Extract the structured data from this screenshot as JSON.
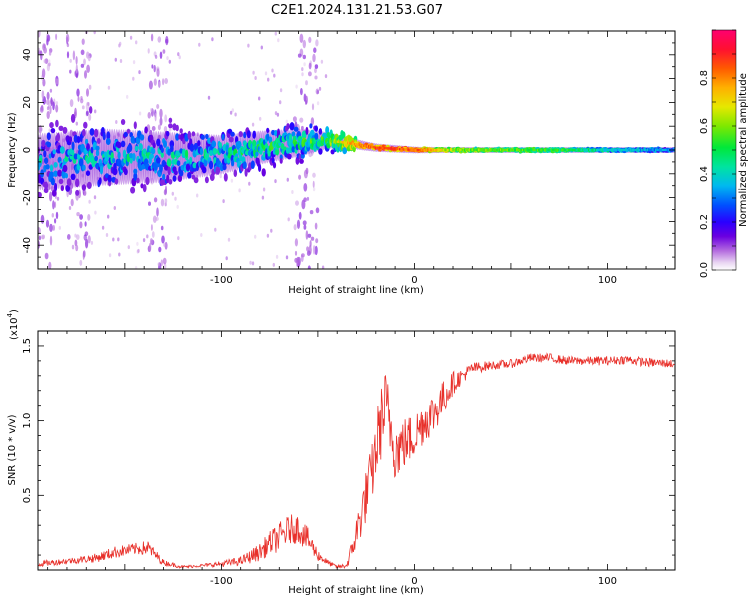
{
  "figure_title": "C2E1.2024.131.21.53.G07",
  "colors": {
    "snr_line": "#e8302a",
    "axes": "#000000",
    "background": "#ffffff"
  },
  "chart_data": [
    {
      "type": "heatmap",
      "title": "C2E1.2024.131.21.53.G07",
      "xlabel": "Height of straight line (km)",
      "ylabel": "Frequency (Hz)",
      "xlim": [
        -195,
        135
      ],
      "ylim": [
        -50,
        50
      ],
      "xticks": [
        {
          "value": -100,
          "label": "-100"
        },
        {
          "value": 0,
          "label": "0"
        },
        {
          "value": 100,
          "label": "100"
        }
      ],
      "yticks": [
        {
          "value": -40,
          "label": "-40"
        },
        {
          "value": -20,
          "label": "-20"
        },
        {
          "value": 0,
          "label": "0"
        },
        {
          "value": 20,
          "label": "20"
        },
        {
          "value": 40,
          "label": "40"
        }
      ],
      "colorbar": {
        "label": "Normalized spectral amplitude",
        "range": [
          0.0,
          1.0
        ],
        "ticks": [
          {
            "value": 0.0,
            "label": "0.0"
          },
          {
            "value": 0.2,
            "label": "0.2"
          },
          {
            "value": 0.4,
            "label": "0.4"
          },
          {
            "value": 0.6,
            "label": "0.6"
          },
          {
            "value": 0.8,
            "label": "0.8"
          }
        ]
      },
      "ridge": {
        "x": [
          -195,
          -160,
          -130,
          -100,
          -80,
          -60,
          -45,
          -35,
          -20,
          0,
          20,
          50,
          80,
          100,
          135
        ],
        "freq_hz": [
          -5,
          -3,
          -3,
          -2,
          1,
          3,
          4,
          3,
          1,
          0,
          0,
          0,
          0,
          0,
          0
        ],
        "spread_hz": [
          10,
          10,
          9,
          7,
          6,
          5,
          3,
          2,
          1.5,
          1.2,
          1.0,
          1.0,
          1.0,
          1.0,
          1.0
        ],
        "amplitude": [
          0.35,
          0.38,
          0.4,
          0.42,
          0.45,
          0.45,
          0.55,
          0.75,
          0.85,
          0.85,
          0.6,
          0.55,
          0.5,
          0.4,
          0.3
        ]
      },
      "noise_bands_x": [
        [
          -195,
          -185
        ],
        [
          -180,
          -168
        ],
        [
          -138,
          -128
        ],
        [
          -62,
          -50
        ]
      ]
    },
    {
      "type": "line",
      "xlabel": "Height of straight line (km)",
      "ylabel": "SNR (10 * v/v)",
      "y_scale_label": "(x10",
      "y_scale_exponent": "4",
      "xlim": [
        -195,
        135
      ],
      "ylim": [
        0,
        1.6
      ],
      "xticks": [
        {
          "value": -100,
          "label": "-100"
        },
        {
          "value": 0,
          "label": "0"
        },
        {
          "value": 100,
          "label": "100"
        }
      ],
      "yticks": [
        {
          "value": 0.5,
          "label": "0.5"
        },
        {
          "value": 1.0,
          "label": "1.0"
        },
        {
          "value": 1.5,
          "label": "1.5"
        }
      ],
      "series": [
        {
          "name": "SNR",
          "x": [
            -195,
            -180,
            -165,
            -155,
            -145,
            -138,
            -130,
            -120,
            -110,
            -100,
            -90,
            -80,
            -75,
            -70,
            -65,
            -60,
            -55,
            -50,
            -45,
            -40,
            -35,
            -32,
            -28,
            -25,
            -22,
            -20,
            -18,
            -15,
            -12,
            -10,
            -5,
            0,
            5,
            10,
            15,
            20,
            25,
            30,
            40,
            50,
            60,
            70,
            80,
            90,
            100,
            110,
            120,
            135
          ],
          "y": [
            0.04,
            0.06,
            0.08,
            0.12,
            0.14,
            0.15,
            0.05,
            0.02,
            0.03,
            0.04,
            0.06,
            0.12,
            0.18,
            0.22,
            0.27,
            0.28,
            0.2,
            0.1,
            0.05,
            0.02,
            0.03,
            0.15,
            0.35,
            0.5,
            0.65,
            0.8,
            0.95,
            1.1,
            0.95,
            0.8,
            0.85,
            0.9,
            1.0,
            1.05,
            1.15,
            1.25,
            1.3,
            1.35,
            1.37,
            1.38,
            1.42,
            1.42,
            1.4,
            1.4,
            1.4,
            1.41,
            1.39,
            1.38
          ],
          "noise_amplitude": [
            0.02,
            0.02,
            0.03,
            0.04,
            0.04,
            0.05,
            0.02,
            0.01,
            0.01,
            0.02,
            0.03,
            0.06,
            0.08,
            0.1,
            0.1,
            0.1,
            0.08,
            0.04,
            0.02,
            0.01,
            0.02,
            0.08,
            0.15,
            0.18,
            0.2,
            0.22,
            0.25,
            0.25,
            0.22,
            0.2,
            0.18,
            0.16,
            0.15,
            0.14,
            0.12,
            0.08,
            0.05,
            0.04,
            0.03,
            0.03,
            0.03,
            0.03,
            0.03,
            0.03,
            0.03,
            0.03,
            0.03,
            0.03
          ]
        }
      ]
    }
  ]
}
